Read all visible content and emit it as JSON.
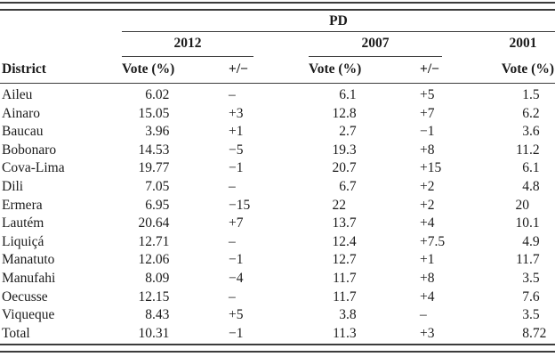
{
  "page": {
    "background": "#ffffff",
    "text_color": "#1b1b1b",
    "rule_color": "#3c3c3c"
  },
  "table": {
    "group_label": "PD",
    "years": {
      "y2012": "2012",
      "y2007": "2007",
      "y2001": "2001"
    },
    "headers": {
      "district": "District",
      "vote": "Vote (%)",
      "change": "+/−"
    },
    "rows": [
      {
        "district": "Aileu",
        "vote_2012": "6.02",
        "change_2012": "–",
        "vote_2007": "6.1",
        "change_2007": "+5",
        "vote_2001": "1.5"
      },
      {
        "district": "Ainaro",
        "vote_2012": "15.05",
        "change_2012": "+3",
        "vote_2007": "12.8",
        "change_2007": "+7",
        "vote_2001": "6.2"
      },
      {
        "district": "Baucau",
        "vote_2012": "3.96",
        "change_2012": "+1",
        "vote_2007": "2.7",
        "change_2007": "−1",
        "vote_2001": "3.6"
      },
      {
        "district": "Bobonaro",
        "vote_2012": "14.53",
        "change_2012": "−5",
        "vote_2007": "19.3",
        "change_2007": "+8",
        "vote_2001": "11.2"
      },
      {
        "district": "Cova-Lima",
        "vote_2012": "19.77",
        "change_2012": "−1",
        "vote_2007": "20.7",
        "change_2007": "+15",
        "vote_2001": "6.1"
      },
      {
        "district": "Dili",
        "vote_2012": "7.05",
        "change_2012": "–",
        "vote_2007": "6.7",
        "change_2007": "+2",
        "vote_2001": "4.8"
      },
      {
        "district": "Ermera",
        "vote_2012": "6.95",
        "change_2012": "−15",
        "vote_2007": "22",
        "change_2007": "+2",
        "vote_2001": "20"
      },
      {
        "district": "Lautém",
        "vote_2012": "20.64",
        "change_2012": "+7",
        "vote_2007": "13.7",
        "change_2007": "+4",
        "vote_2001": "10.1"
      },
      {
        "district": "Liquiçá",
        "vote_2012": "12.71",
        "change_2012": "–",
        "vote_2007": "12.4",
        "change_2007": "+7.5",
        "vote_2001": "4.9"
      },
      {
        "district": "Manatuto",
        "vote_2012": "12.06",
        "change_2012": "−1",
        "vote_2007": "12.7",
        "change_2007": "+1",
        "vote_2001": "11.7"
      },
      {
        "district": "Manufahi",
        "vote_2012": "8.09",
        "change_2012": "−4",
        "vote_2007": "11.7",
        "change_2007": "+8",
        "vote_2001": "3.5"
      },
      {
        "district": "Oecusse",
        "vote_2012": "12.15",
        "change_2012": "–",
        "vote_2007": "11.7",
        "change_2007": "+4",
        "vote_2001": "7.6"
      },
      {
        "district": "Viqueque",
        "vote_2012": "8.43",
        "change_2012": "+5",
        "vote_2007": "3.8",
        "change_2007": "–",
        "vote_2001": "3.5"
      },
      {
        "district": "Total",
        "vote_2012": "10.31",
        "change_2012": "−1",
        "vote_2007": "11.3",
        "change_2007": "+3",
        "vote_2001": "8.72"
      }
    ]
  }
}
